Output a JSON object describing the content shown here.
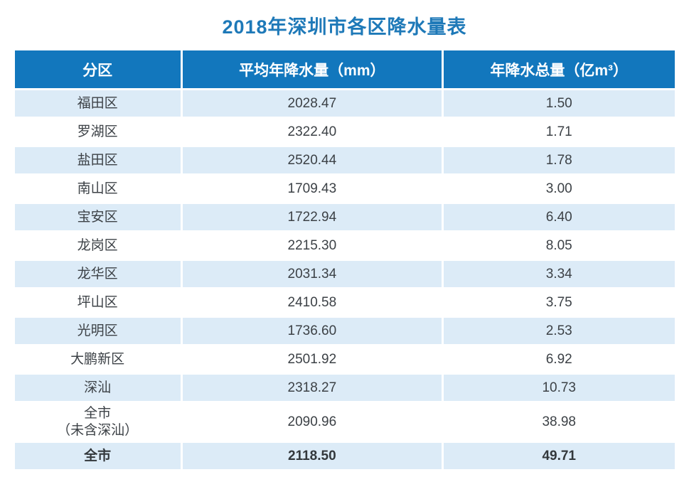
{
  "title": "2018年深圳市各区降水量表",
  "colors": {
    "header_bg": "#1277bd",
    "row_alt_bg": "#dcebf7",
    "title_color": "#1e79b8",
    "body_text": "#3c4146"
  },
  "table": {
    "headers": [
      "分区",
      "平均年降水量（mm）",
      "年降水总量（亿m³）"
    ],
    "rows": [
      {
        "name": "福田区",
        "rainfall": "2028.47",
        "total": "1.50"
      },
      {
        "name": "罗湖区",
        "rainfall": "2322.40",
        "total": "1.71"
      },
      {
        "name": "盐田区",
        "rainfall": "2520.44",
        "total": "1.78"
      },
      {
        "name": "南山区",
        "rainfall": "1709.43",
        "total": "3.00"
      },
      {
        "name": "宝安区",
        "rainfall": "1722.94",
        "total": "6.40"
      },
      {
        "name": "龙岗区",
        "rainfall": "2215.30",
        "total": "8.05"
      },
      {
        "name": "龙华区",
        "rainfall": "2031.34",
        "total": "3.34"
      },
      {
        "name": "坪山区",
        "rainfall": "2410.58",
        "total": "3.75"
      },
      {
        "name": "光明区",
        "rainfall": "1736.60",
        "total": "2.53"
      },
      {
        "name": "大鹏新区",
        "rainfall": "2501.92",
        "total": "6.92"
      },
      {
        "name": "深汕",
        "rainfall": "2318.27",
        "total": "10.73"
      },
      {
        "name": "全市\n（未含深汕）",
        "rainfall": "2090.96",
        "total": "38.98"
      },
      {
        "name": "全市",
        "rainfall": "2118.50",
        "total": "49.71"
      }
    ]
  },
  "chart_data": {
    "type": "table",
    "title": "2018年深圳市各区降水量表",
    "columns": [
      "分区",
      "平均年降水量（mm）",
      "年降水总量（亿m³）"
    ],
    "rows": [
      [
        "福田区",
        2028.47,
        1.5
      ],
      [
        "罗湖区",
        2322.4,
        1.71
      ],
      [
        "盐田区",
        2520.44,
        1.78
      ],
      [
        "南山区",
        1709.43,
        3.0
      ],
      [
        "宝安区",
        1722.94,
        6.4
      ],
      [
        "龙岗区",
        2215.3,
        8.05
      ],
      [
        "龙华区",
        2031.34,
        3.34
      ],
      [
        "坪山区",
        2410.58,
        3.75
      ],
      [
        "光明区",
        1736.6,
        2.53
      ],
      [
        "大鹏新区",
        2501.92,
        6.92
      ],
      [
        "深汕",
        2318.27,
        10.73
      ],
      [
        "全市（未含深汕）",
        2090.96,
        38.98
      ],
      [
        "全市",
        2118.5,
        49.71
      ]
    ]
  }
}
